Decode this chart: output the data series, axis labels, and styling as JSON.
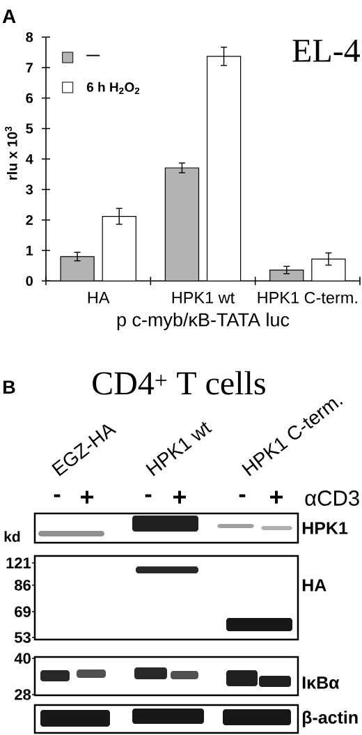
{
  "chart_data": [
    {
      "type": "bar",
      "title": "EL-4",
      "xlabel": "p c-myb/κB-TATA luc",
      "ylabel": "rlu x 10$^{3}$",
      "annotations": [
        "A"
      ],
      "categories": [
        "HA",
        "HPK1 wt",
        "HPK1 C-term."
      ],
      "series": [
        {
          "name": "—",
          "color": "#b3b3b3",
          "values": [
            0.8,
            3.71,
            0.36
          ],
          "errors": [
            0.14,
            0.16,
            0.12
          ]
        },
        {
          "name": "6 h H$_{2}$O$_{2}$",
          "color": "#ffffff",
          "values": [
            2.12,
            7.37,
            0.72
          ],
          "errors": [
            0.26,
            0.3,
            0.2
          ]
        }
      ],
      "ylim": [
        0,
        8
      ],
      "yticks": [
        0,
        1,
        2,
        3,
        4,
        5,
        6,
        7,
        8
      ],
      "legend": "top left"
    },
    {
      "type": "other",
      "title": "CD4$^{+}$ T cells",
      "annotations": [
        "B",
        "EGZ-HA",
        "HPK1 wt",
        "HPK1 C-term.",
        "-",
        "+",
        "-",
        "+",
        "-",
        "+",
        "αCD3",
        "HPK1",
        "HA",
        "IκBα",
        "β-actin",
        "kd",
        "121",
        "86",
        "69",
        "53",
        "40",
        "28"
      ]
    }
  ]
}
